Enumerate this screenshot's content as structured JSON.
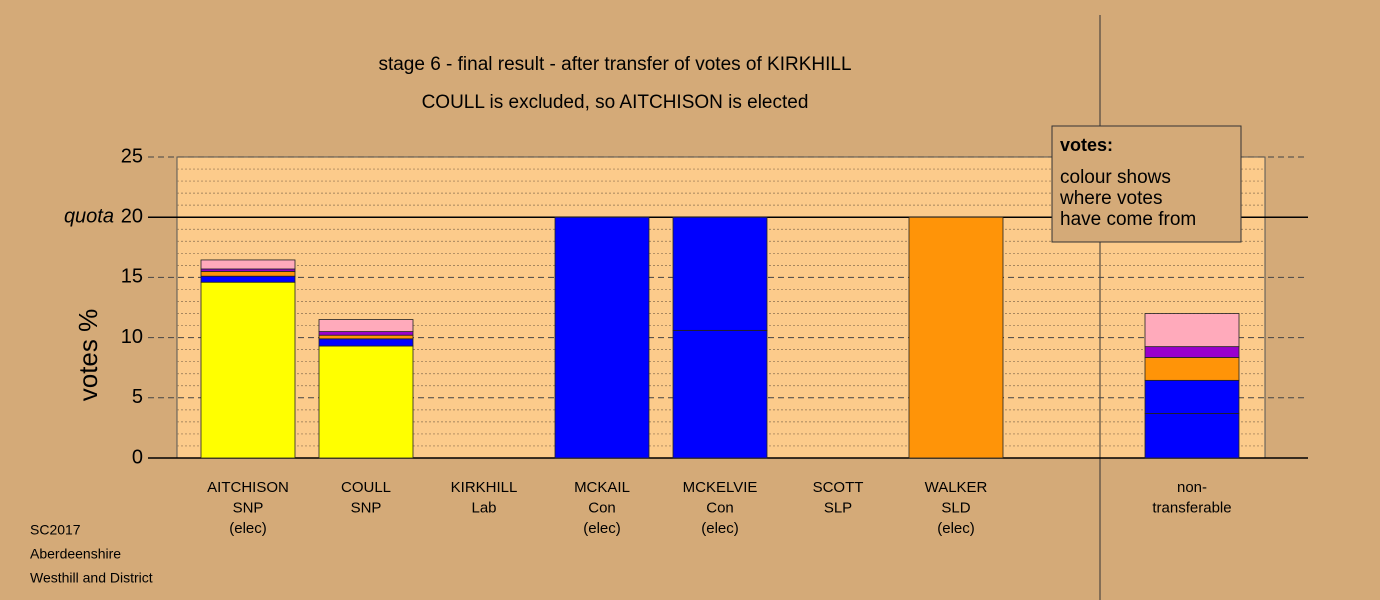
{
  "chart_data": {
    "type": "stacked_bar",
    "title": "stage 6 - final result - after transfer of votes of KIRKHILL",
    "subtitle": "COULL is excluded, so AITCHISON is elected",
    "y_label": "votes %",
    "quota_label": "quota",
    "quota": 20,
    "categories": [
      [
        "AITCHISON",
        "SNP",
        "(elec)"
      ],
      [
        "COULL",
        "SNP"
      ],
      [
        "KIRKHILL",
        "Lab"
      ],
      [
        "MCKAIL",
        "Con",
        "(elec)"
      ],
      [
        "MCKELVIE",
        "Con",
        "(elec)"
      ],
      [
        "SCOTT",
        "SLP"
      ],
      [
        "WALKER",
        "SLD",
        "(elec)"
      ],
      null,
      [
        "non-",
        "transferable"
      ]
    ],
    "series": [
      {
        "color": "#ffff00",
        "values": [
          14.6,
          9.3,
          0,
          0,
          0,
          0,
          0,
          null,
          0
        ]
      },
      {
        "color": "#0000ff",
        "values": [
          0.5,
          0.6,
          0,
          20,
          10.6,
          0,
          0,
          null,
          3.7
        ]
      },
      {
        "color": "#0000ff",
        "values": [
          0,
          0,
          0,
          0,
          9.4,
          0,
          0,
          null,
          2.75
        ]
      },
      {
        "color": "#ff9408",
        "values": [
          0.4,
          0.3,
          0,
          0,
          0,
          0,
          20,
          null,
          1.9
        ]
      },
      {
        "color": "#9900cc",
        "values": [
          0.2,
          0.3,
          0,
          0,
          0,
          0,
          0,
          null,
          0.9
        ]
      },
      {
        "color": "#ffaabb",
        "values": [
          0.75,
          1.0,
          0,
          0,
          0,
          0,
          0,
          null,
          2.75
        ]
      }
    ],
    "ylim": [
      0,
      25
    ],
    "yticks": [
      0,
      5,
      10,
      15,
      20,
      25
    ],
    "legend": {
      "title": "votes:",
      "lines": [
        "colour shows",
        "where votes",
        "have come from"
      ]
    },
    "footer": [
      "SC2017",
      "Aberdeenshire",
      "Westhill and District"
    ]
  }
}
